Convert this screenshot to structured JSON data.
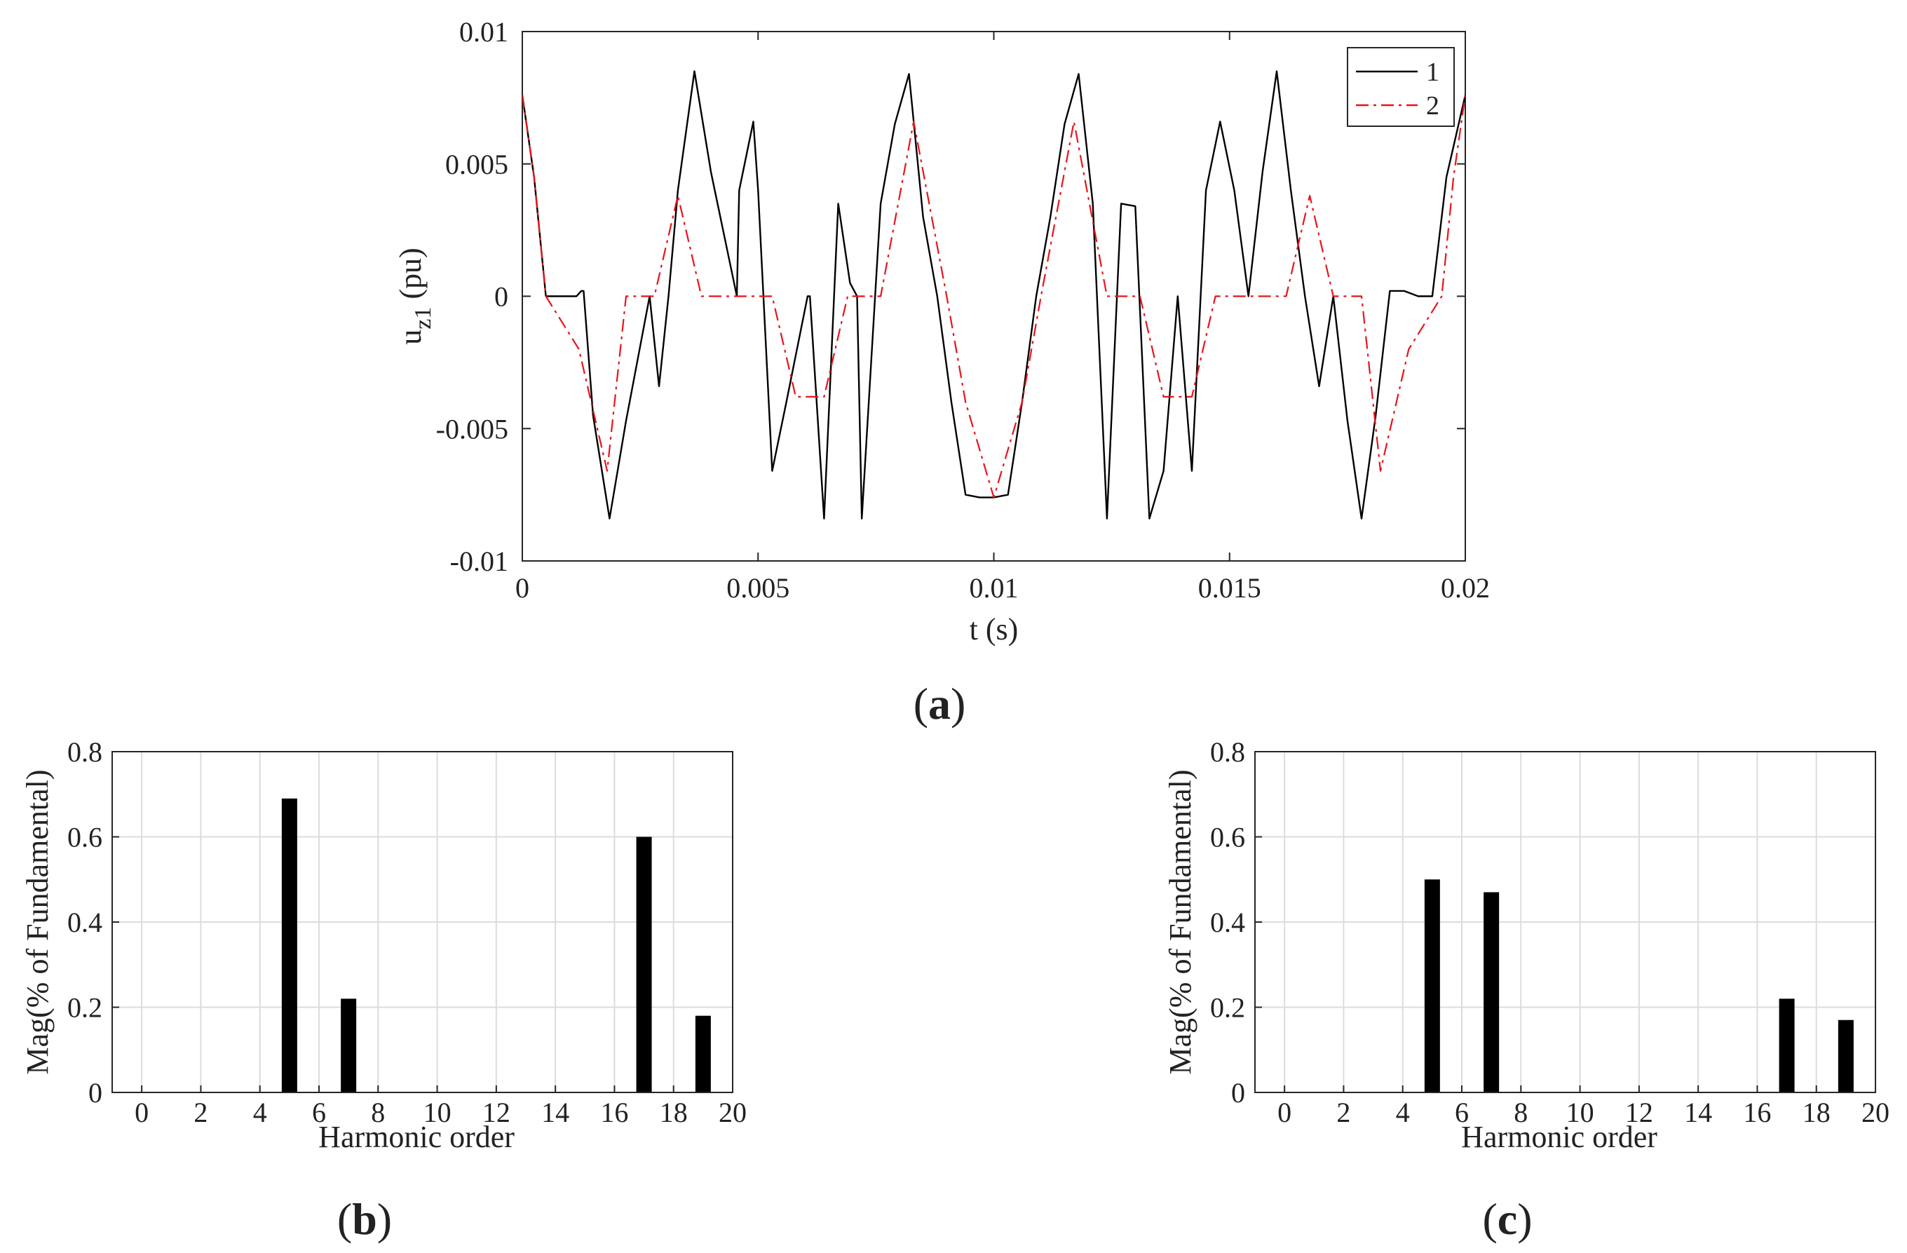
{
  "colors": {
    "series1": "#000000",
    "series2": "#e8141b",
    "axis": "#262626",
    "grid": "#dcdcdc",
    "bar": "#000000"
  },
  "chart_data": [
    {
      "id": "a",
      "type": "line",
      "caption": "a",
      "xlabel": "t (s)",
      "ylabel_main": "u",
      "ylabel_sub": "z1",
      "ylabel_unit": " (pu)",
      "xlim": [
        0,
        0.02
      ],
      "ylim": [
        -0.01,
        0.01
      ],
      "xticks": [
        0,
        0.005,
        0.01,
        0.015,
        0.02
      ],
      "xtick_labels": [
        "0",
        "0.005",
        "0.01",
        "0.015",
        "0.02"
      ],
      "yticks": [
        -0.01,
        -0.005,
        0,
        0.005,
        0.01
      ],
      "ytick_labels": [
        "-0.01",
        "-0.005",
        "0",
        "0.005",
        "0.01"
      ],
      "grid": false,
      "legend_position": "top-right",
      "series": [
        {
          "name": "1",
          "style": "solid",
          "color": "#000000",
          "x": [
            0,
            0.00025,
            0.0005,
            0.00115,
            0.00125,
            0.0013,
            0.0015,
            0.00185,
            0.0022,
            0.0027,
            0.0029,
            0.0031,
            0.0033,
            0.00365,
            0.004,
            0.00455,
            0.0046,
            0.0049,
            0.005,
            0.0053,
            0.0056,
            0.00605,
            0.0061,
            0.0064,
            0.0067,
            0.00695,
            0.0071,
            0.0072,
            0.0076,
            0.0079,
            0.0082,
            0.0085,
            0.0088,
            0.0091,
            0.0094,
            0.0097,
            0.01,
            0.0103,
            0.0106,
            0.0109,
            0.0112,
            0.0115,
            0.0118,
            0.0121,
            0.0124,
            0.0127,
            0.013,
            0.0133,
            0.0136,
            0.0139,
            0.0142,
            0.0145,
            0.0148,
            0.0151,
            0.0154,
            0.0157,
            0.016,
            0.0163,
            0.0166,
            0.0169,
            0.0172,
            0.0175,
            0.0178,
            0.0181,
            0.0184,
            0.0187,
            0.019,
            0.0193,
            0.0196,
            0.02
          ],
          "y": [
            0.0076,
            0.0045,
            0,
            0,
            0.0002,
            0.0002,
            -0.0045,
            -0.0084,
            -0.0047,
            0,
            -0.0034,
            0,
            0.004,
            0.0085,
            0.0047,
            0,
            0.004,
            0.0066,
            0.004,
            -0.0066,
            -0.004,
            0,
            0,
            -0.0084,
            0.0035,
            0.0005,
            0,
            -0.0084,
            0.0035,
            0.0065,
            0.0084,
            0.003,
            0,
            -0.004,
            -0.0075,
            -0.0076,
            -0.0076,
            -0.0075,
            -0.004,
            0,
            0.003,
            0.0065,
            0.0084,
            0.0035,
            -0.0084,
            0.0035,
            0.0034,
            -0.0084,
            -0.0066,
            0,
            -0.0066,
            0.004,
            0.0066,
            0.004,
            0,
            0.0047,
            0.0085,
            0.004,
            0,
            -0.0034,
            0,
            -0.0047,
            -0.0084,
            -0.0045,
            0.0002,
            0.0002,
            0,
            0,
            0.0045,
            0.0076
          ]
        },
        {
          "name": "2",
          "style": "dashdot",
          "color": "#e8141b",
          "x": [
            0,
            0.00025,
            0.0005,
            0.0012,
            0.0018,
            0.0022,
            0.0028,
            0.0033,
            0.0038,
            0.0053,
            0.0058,
            0.0064,
            0.0069,
            0.0076,
            0.0083,
            0.009,
            0.0094,
            0.01,
            0.0106,
            0.011,
            0.0117,
            0.0124,
            0.0131,
            0.0136,
            0.0142,
            0.0147,
            0.0162,
            0.0167,
            0.0172,
            0.0178,
            0.0182,
            0.0188,
            0.0195,
            0.01975,
            0.02
          ],
          "y": [
            0.0076,
            0.0045,
            0,
            -0.002,
            -0.0066,
            0,
            0,
            0.0038,
            0,
            0,
            -0.0038,
            -0.0038,
            0,
            0,
            0.0066,
            0,
            -0.004,
            -0.0076,
            -0.004,
            0,
            0.0066,
            0,
            0,
            -0.0038,
            -0.0038,
            0,
            0,
            0.0038,
            0,
            0,
            -0.0066,
            -0.002,
            0,
            0.0045,
            0.0076
          ]
        }
      ]
    },
    {
      "id": "b",
      "type": "bar",
      "caption": "b",
      "xlabel": "Harmonic order",
      "ylabel": "Mag(% of Fundamental)",
      "xlim": [
        -1,
        20
      ],
      "ylim": [
        0,
        0.8
      ],
      "xticks": [
        0,
        2,
        4,
        6,
        8,
        10,
        12,
        14,
        16,
        18,
        20
      ],
      "xtick_labels": [
        "0",
        "2",
        "4",
        "6",
        "8",
        "10",
        "12",
        "14",
        "16",
        "18",
        "20"
      ],
      "yticks": [
        0,
        0.2,
        0.4,
        0.6,
        0.8
      ],
      "ytick_labels": [
        "0",
        "0.2",
        "0.4",
        "0.6",
        "0.8"
      ],
      "grid": true,
      "categories": [
        5,
        7,
        17,
        19
      ],
      "values": [
        0.69,
        0.22,
        0.6,
        0.18
      ]
    },
    {
      "id": "c",
      "type": "bar",
      "caption": "c",
      "xlabel": "Harmonic order",
      "ylabel": "Mag(% of Fundamental)",
      "xlim": [
        -1,
        20
      ],
      "ylim": [
        0,
        0.8
      ],
      "xticks": [
        0,
        2,
        4,
        6,
        8,
        10,
        12,
        14,
        16,
        18,
        20
      ],
      "xtick_labels": [
        "0",
        "2",
        "4",
        "6",
        "8",
        "10",
        "12",
        "14",
        "16",
        "18",
        "20"
      ],
      "yticks": [
        0,
        0.2,
        0.4,
        0.6,
        0.8
      ],
      "ytick_labels": [
        "0",
        "0.2",
        "0.4",
        "0.6",
        "0.8"
      ],
      "grid": true,
      "categories": [
        5,
        7,
        17,
        19
      ],
      "values": [
        0.5,
        0.47,
        0.22,
        0.17
      ]
    }
  ]
}
